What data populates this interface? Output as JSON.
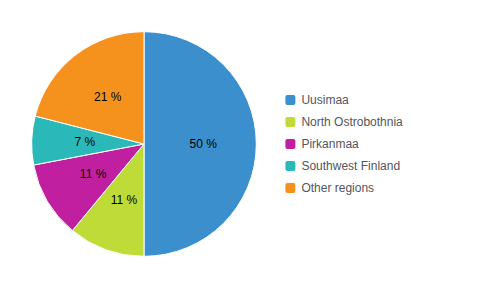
{
  "chart_data": {
    "type": "pie",
    "categories": [
      "Uusimaa",
      "North Ostrobothnia",
      "Pirkanmaa",
      "Southwest Finland",
      "Other regions"
    ],
    "values": [
      50,
      11,
      11,
      7,
      21
    ],
    "value_labels": [
      "50 %",
      "11 %",
      "11 %",
      "7 %",
      "21 %"
    ],
    "colors": [
      "#3B8FCC",
      "#BFDB38",
      "#C020A0",
      "#2BB8B8",
      "#F5921E"
    ],
    "data_labels": true,
    "legend": "right"
  }
}
